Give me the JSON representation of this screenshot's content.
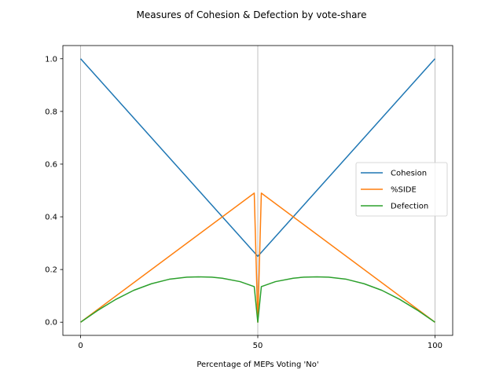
{
  "chart_data": {
    "type": "line",
    "title": "Measures of Cohesion & Defection by vote-share",
    "xlabel": "Percentage of MEPs Voting 'No'",
    "ylabel": "",
    "xlim": [
      -5,
      105
    ],
    "ylim": [
      -0.05,
      1.05
    ],
    "xticks": [
      0,
      50,
      100
    ],
    "xtick_labels": [
      "0",
      "50",
      "100"
    ],
    "yticks": [
      0.0,
      0.2,
      0.4,
      0.6,
      0.8,
      1.0
    ],
    "ytick_labels": [
      "0.0",
      "0.2",
      "0.4",
      "0.6",
      "0.8",
      "1.0"
    ],
    "grid": "x-axis vertical lines",
    "legend_position": "center-right",
    "series": [
      {
        "name": "Cohesion",
        "color": "#1f77b4",
        "x": [
          0,
          50,
          100
        ],
        "y": [
          1.0,
          0.25,
          1.0
        ]
      },
      {
        "name": "%SIDE",
        "color": "#ff7f0e",
        "x": [
          0,
          49,
          50,
          51,
          100
        ],
        "y": [
          0.0,
          0.49,
          0.0,
          0.49,
          0.0
        ]
      },
      {
        "name": "Defection",
        "color": "#2ca02c",
        "x": [
          0,
          5,
          10,
          15,
          20,
          25,
          30,
          33.3,
          37,
          40,
          45,
          49,
          50,
          51,
          55,
          60,
          63,
          66.7,
          70,
          75,
          80,
          85,
          90,
          95,
          100
        ],
        "y": [
          0.0,
          0.046,
          0.087,
          0.121,
          0.146,
          0.163,
          0.171,
          0.172,
          0.171,
          0.167,
          0.154,
          0.135,
          0.0,
          0.135,
          0.154,
          0.167,
          0.171,
          0.172,
          0.171,
          0.163,
          0.146,
          0.121,
          0.087,
          0.046,
          0.0
        ]
      }
    ]
  }
}
